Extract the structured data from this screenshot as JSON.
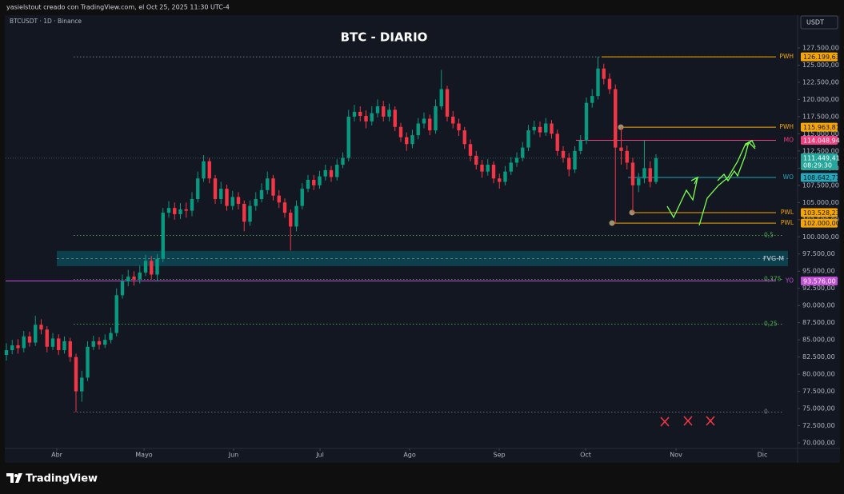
{
  "chart_data": {
    "type": "candlestick",
    "header": "yasielstout creado con TradingView.com, el Oct 25, 2025 11:30 UTC-4",
    "symbol": "BTCUSDT · 1D · Binance",
    "title": "BTC - DIARIO",
    "currency": "USDT",
    "brand": "TradingView",
    "up_color": "#089981",
    "down_color": "#f23645",
    "open": [
      82800,
      83500,
      84200,
      83800,
      85500,
      84600,
      87200,
      86500,
      84000,
      85200,
      83500,
      84800,
      82500,
      77500,
      79500,
      84000,
      84800,
      84300,
      85000,
      86000,
      91500,
      93500,
      94200,
      93800,
      94800,
      96500,
      94500,
      96800,
      103500,
      104200,
      103300,
      104000,
      103800,
      105500,
      108500,
      111000,
      108500,
      105500,
      107000,
      104500,
      105800,
      104800,
      102200,
      104500,
      105500,
      106800,
      108500,
      106000,
      105000,
      103500,
      101500,
      104500,
      107000,
      108300,
      107500,
      108800,
      109700,
      108700,
      110500,
      111500,
      117500,
      118200,
      117600,
      116800,
      118000,
      119000,
      117500,
      118500,
      116000,
      114500,
      113500,
      114800,
      116500,
      117200,
      115500,
      119000,
      121500,
      117500,
      116500,
      115500,
      113500,
      111800,
      110500,
      109500,
      110500,
      108500,
      108000,
      109500,
      110800,
      111500,
      113000,
      115500,
      116000,
      115200,
      116500,
      115000,
      112500,
      111500,
      109800,
      112500,
      114000,
      119500,
      120500,
      124500,
      123000,
      121500,
      113000,
      112500,
      110800,
      107500,
      108500,
      110000,
      108000
    ],
    "high": [
      84500,
      85000,
      85100,
      86300,
      86200,
      88500,
      88000,
      87000,
      86000,
      85800,
      85500,
      85300,
      83000,
      80500,
      84800,
      85600,
      85400,
      85800,
      86800,
      92500,
      94500,
      95200,
      95000,
      95800,
      97400,
      97200,
      97500,
      104200,
      105200,
      105000,
      104900,
      105000,
      106500,
      109500,
      111900,
      111500,
      109000,
      108000,
      107600,
      106700,
      106500,
      105300,
      105300,
      106500,
      107800,
      109500,
      109000,
      106800,
      105600,
      104000,
      105300,
      107800,
      109000,
      109000,
      109600,
      110500,
      110300,
      111300,
      112300,
      118500,
      119200,
      119000,
      118400,
      119000,
      120000,
      119800,
      119400,
      119000,
      116600,
      115200,
      115600,
      117300,
      118100,
      117800,
      120000,
      124300,
      122000,
      118300,
      117200,
      116000,
      114200,
      112500,
      111200,
      111300,
      111000,
      109200,
      110300,
      111600,
      112300,
      113800,
      116300,
      116900,
      116800,
      117300,
      117000,
      115600,
      113200,
      112200,
      113200,
      114800,
      120300,
      121500,
      126199.63,
      125200,
      123800,
      122200,
      115963.81,
      113300,
      111500,
      109300,
      114000,
      111000,
      112000
    ],
    "low": [
      82000,
      82900,
      83000,
      83200,
      84000,
      84100,
      85800,
      83200,
      83500,
      82800,
      83000,
      81800,
      74500,
      76000,
      79000,
      83500,
      83600,
      83800,
      84500,
      85500,
      91000,
      92800,
      92900,
      93200,
      94300,
      93800,
      93500,
      96300,
      102800,
      102500,
      102600,
      102800,
      103000,
      105000,
      108000,
      107800,
      104800,
      104800,
      103800,
      103900,
      104000,
      100800,
      101600,
      103800,
      105000,
      106200,
      105300,
      104200,
      102800,
      98000,
      100800,
      104000,
      106500,
      106800,
      107000,
      108200,
      108000,
      108200,
      110000,
      111000,
      116800,
      116800,
      115800,
      116200,
      117400,
      116800,
      116800,
      115400,
      113800,
      112500,
      112900,
      114200,
      115800,
      114800,
      115000,
      118500,
      116800,
      115800,
      114700,
      112800,
      111000,
      109800,
      108600,
      108900,
      107800,
      107000,
      107500,
      109000,
      110200,
      111000,
      112500,
      114900,
      114500,
      114700,
      114300,
      111800,
      110800,
      108800,
      109300,
      112000,
      113500,
      118800,
      120000,
      122200,
      120800,
      102000,
      110500,
      109800,
      103528.23,
      106500,
      107800,
      107200,
      107700
    ],
    "close": [
      83500,
      84200,
      83800,
      85500,
      84600,
      87200,
      86500,
      84000,
      85200,
      83500,
      84800,
      82500,
      77500,
      79500,
      84000,
      84800,
      84300,
      85000,
      86000,
      91500,
      93500,
      94200,
      93800,
      94800,
      96500,
      94500,
      96800,
      103500,
      104200,
      103300,
      104000,
      103800,
      105500,
      108500,
      111000,
      108500,
      105500,
      107000,
      104500,
      105800,
      104800,
      102200,
      104500,
      105500,
      106800,
      108500,
      106000,
      105000,
      103500,
      101500,
      104500,
      107000,
      108300,
      107500,
      108800,
      109700,
      108700,
      110500,
      111500,
      117500,
      118200,
      117600,
      116800,
      118000,
      119000,
      117500,
      118500,
      116000,
      114500,
      113500,
      114800,
      116500,
      117200,
      115500,
      119000,
      121500,
      117500,
      116500,
      115500,
      113500,
      111800,
      110500,
      109500,
      110500,
      108500,
      108000,
      109500,
      110800,
      111500,
      113000,
      115500,
      116000,
      115200,
      116500,
      115000,
      112500,
      111500,
      109800,
      112500,
      114000,
      119500,
      120500,
      124500,
      123000,
      121500,
      113000,
      112500,
      110800,
      107500,
      108500,
      110000,
      108000,
      111449.41
    ],
    "xlim": [
      -0.14,
      136.41
    ],
    "xticks": [
      {
        "value": 8.69,
        "label": "Abr"
      },
      {
        "value": 23.72,
        "label": "Mayo"
      },
      {
        "value": 39.17,
        "label": "Jun"
      },
      {
        "value": 54.07,
        "label": "Jul"
      },
      {
        "value": 69.52,
        "label": "Ago"
      },
      {
        "value": 84.97,
        "label": "Sep"
      },
      {
        "value": 99.86,
        "label": "Oct"
      },
      {
        "value": 115.45,
        "label": "Nov"
      },
      {
        "value": 130.34,
        "label": "Dic"
      }
    ],
    "ylim": [
      67330,
      132150
    ],
    "yticks": [
      {
        "value": 127500,
        "label": "127.500,00"
      },
      {
        "value": 125000,
        "label": "125.000,00"
      },
      {
        "value": 122500,
        "label": "122.500,00"
      },
      {
        "value": 120000,
        "label": "120.000,00"
      },
      {
        "value": 117500,
        "label": "117.500,00"
      },
      {
        "value": 115000,
        "label": "115.000,00"
      },
      {
        "value": 112500,
        "label": "112.500,00"
      },
      {
        "value": 110000,
        "label": "110.000,00"
      },
      {
        "value": 107500,
        "label": "107.500,00"
      },
      {
        "value": 105000,
        "label": "105.000,00"
      },
      {
        "value": 102500,
        "label": "102.500,00"
      },
      {
        "value": 100000,
        "label": "100.000,00"
      },
      {
        "value": 97500,
        "label": "97.500,00"
      },
      {
        "value": 95000,
        "label": "95.000,00"
      },
      {
        "value": 92500,
        "label": "92.500,00"
      },
      {
        "value": 90000,
        "label": "90.000,00"
      },
      {
        "value": 87500,
        "label": "87.500,00"
      },
      {
        "value": 85000,
        "label": "85.000,00"
      },
      {
        "value": 82500,
        "label": "82.500,00"
      },
      {
        "value": 80000,
        "label": "80.000,00"
      },
      {
        "value": 77500,
        "label": "77.500,00"
      },
      {
        "value": 75000,
        "label": "75.000,00"
      },
      {
        "value": 72500,
        "label": "72.500,00"
      },
      {
        "value": 70000,
        "label": "70.000,00"
      }
    ],
    "current_price": {
      "value": 111449.41,
      "label": "111.449,41",
      "countdown": "08:29:30",
      "color": "#26a69a"
    },
    "levels": [
      {
        "name": "PWH",
        "value": 126199.63,
        "label": "126.199,63",
        "color": "#f7a600"
      },
      {
        "name": "PWH",
        "value": 115963.81,
        "label": "115.963,81",
        "color": "#f7a600"
      },
      {
        "name": "MO",
        "value": 114048.94,
        "label": "114.048,94",
        "color": "#f23f7f"
      },
      {
        "name": "WO",
        "value": 108642.77,
        "label": "108.642,77",
        "color": "#26a6b8"
      },
      {
        "name": "PWL",
        "value": 103528.23,
        "label": "103.528,23",
        "color": "#f7a600"
      },
      {
        "name": "PWL",
        "value": 102000.0,
        "label": "102.000,00",
        "color": "#f7a600"
      },
      {
        "name": "YO",
        "value": 93576.0,
        "label": "93.576,00",
        "color": "#c14fd6"
      }
    ],
    "fib_levels": [
      {
        "label": "0,5",
        "value": 100200,
        "color": "#4caf50"
      },
      {
        "label": "0,375",
        "value": 93800,
        "color": "#4caf50"
      },
      {
        "label": "0,25",
        "value": 87300,
        "color": "#4caf50"
      },
      {
        "label": "0",
        "value": 74500,
        "color": "#787b86"
      }
    ],
    "zones": [
      {
        "label": "FVG-M",
        "from": 95730,
        "to": 97960,
        "color": "#0b4f5c"
      }
    ]
  }
}
